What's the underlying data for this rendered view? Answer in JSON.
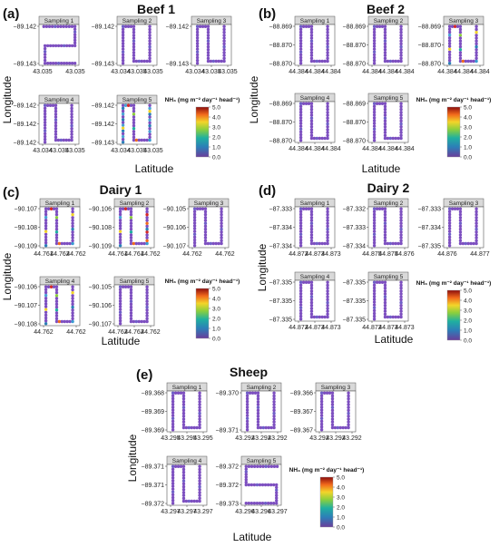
{
  "figure": {
    "colorbar_title": "NH₃ (mg m⁻² day⁻¹ head⁻¹)",
    "colorbar_ticks": [
      "5.0",
      "4.0",
      "3.0",
      "2.0",
      "1.0",
      "0.0"
    ],
    "xlabel": "Latitude",
    "ylabel": "Longitude"
  },
  "chart_data": [
    {
      "type": "scatter",
      "panel": "(a)",
      "title": "Beef 1",
      "xlabel": "Latitude",
      "ylabel": "Longitude",
      "legend": "colorbar NH3 0.0-5.0",
      "subplots": [
        {
          "label": "Sampling 1",
          "xticks": [
            "43.035",
            "43.035"
          ],
          "yticks": [
            "−89.142",
            "−89.143"
          ],
          "shape": "loop",
          "values": "mostly 0.0-0.8"
        },
        {
          "label": "Sampling 2",
          "xticks": [
            "43.034",
            "43.035",
            "43.035"
          ],
          "yticks": [
            "−89.142",
            "−89.143"
          ],
          "shape": "U",
          "values": "mostly 0.0-0.8"
        },
        {
          "label": "Sampling 3",
          "xticks": [
            "43.034",
            "43.035",
            "43.035"
          ],
          "yticks": [
            "−89.142",
            "−89.143"
          ],
          "shape": "U",
          "values": "mostly 0.0-0.8"
        },
        {
          "label": "Sampling 4",
          "xticks": [
            "43.034",
            "43.035",
            "43.035"
          ],
          "yticks": [
            "−89.142",
            "−89.142",
            "−89.142"
          ],
          "shape": "U",
          "values": "mostly 0.0-0.8"
        },
        {
          "label": "Sampling 5",
          "xticks": [
            "43.034",
            "43.035",
            "43.035"
          ],
          "yticks": [
            "−89.142",
            "−89.142",
            "−89.143"
          ],
          "shape": "U",
          "values": "0.0-2.0, higher on sides"
        }
      ]
    },
    {
      "type": "scatter",
      "panel": "(b)",
      "title": "Beef 2",
      "xlabel": "Latitude",
      "ylabel": "Longitude",
      "legend": "colorbar NH3 0.0-5.0",
      "subplots": [
        {
          "label": "Sampling 1",
          "xticks": [
            "44.384",
            "44.384",
            "44.384"
          ],
          "yticks": [
            "−88.869",
            "−88.870",
            "−88.870"
          ],
          "shape": "U",
          "values": "mostly 0.0-0.8"
        },
        {
          "label": "Sampling 2",
          "xticks": [
            "44.384",
            "44.384",
            "44.384"
          ],
          "yticks": [
            "−88.869",
            "−88.870",
            "−88.870"
          ],
          "shape": "U",
          "values": "mostly 0.0-0.8"
        },
        {
          "label": "Sampling 3",
          "xticks": [
            "44.384",
            "44.384",
            "44.384"
          ],
          "yticks": [
            "−88.869",
            "−88.870",
            "−88.870"
          ],
          "shape": "U",
          "values": "0.0-1.5"
        },
        {
          "label": "Sampling 4",
          "xticks": [
            "44.384",
            "44.384",
            "44.384"
          ],
          "yticks": [
            "−88.869",
            "−88.870",
            "−88.870"
          ],
          "shape": "U",
          "values": "mostly 0.0-0.8"
        },
        {
          "label": "Sampling 5",
          "xticks": [
            "44.384",
            "44.384",
            "44.384"
          ],
          "yticks": [
            "−88.869",
            "−88.870",
            "−88.870"
          ],
          "shape": "U",
          "values": "mostly 0.0-0.8"
        }
      ]
    },
    {
      "type": "scatter",
      "panel": "(c)",
      "title": "Dairy 1",
      "xlabel": "Latitude",
      "ylabel": "Longitude",
      "legend": "colorbar NH3 0.0-5.0",
      "subplots": [
        {
          "label": "Sampling 1",
          "xticks": [
            "44.761",
            "44.762",
            "44.762"
          ],
          "yticks": [
            "−90.107",
            "−90.108",
            "−90.109"
          ],
          "shape": "U",
          "values": "0.0-2.0"
        },
        {
          "label": "Sampling 2",
          "xticks": [
            "44.761",
            "44.761",
            "44.762"
          ],
          "yticks": [
            "−90.106",
            "−90.108",
            "−90.109"
          ],
          "shape": "U",
          "values": "0.0-5.0, high at right"
        },
        {
          "label": "Sampling 3",
          "xticks": [
            "44.762",
            "44.762"
          ],
          "yticks": [
            "−90.105",
            "−90.106",
            "−90.107"
          ],
          "shape": "U",
          "values": "mostly 0.0-1.0"
        },
        {
          "label": "Sampling 4",
          "xticks": [
            "44.762",
            "44.762"
          ],
          "yticks": [
            "−90.106",
            "−90.107",
            "−90.108"
          ],
          "shape": "U",
          "values": "0.0-4.0"
        },
        {
          "label": "Sampling 5",
          "xticks": [
            "44.762",
            "44.762",
            "44.762"
          ],
          "yticks": [
            "−90.105",
            "−90.106",
            "−90.107"
          ],
          "shape": "U",
          "values": "mostly 0.0-0.8"
        }
      ]
    },
    {
      "type": "scatter",
      "panel": "(d)",
      "title": "Dairy 2",
      "xlabel": "Latitude",
      "ylabel": "Longitude",
      "legend": "colorbar NH3 0.0-5.0",
      "subplots": [
        {
          "label": "Sampling 1",
          "xticks": [
            "44.872",
            "44.873",
            "44.873"
          ],
          "yticks": [
            "−87.333",
            "−87.334",
            "−87.334"
          ],
          "shape": "U",
          "values": "mostly 0.0-0.8"
        },
        {
          "label": "Sampling 2",
          "xticks": [
            "44.875",
            "44.875",
            "44.876"
          ],
          "yticks": [
            "−87.332",
            "−87.333",
            "−87.334"
          ],
          "shape": "U",
          "values": "mostly 0.0-0.8"
        },
        {
          "label": "Sampling 3",
          "xticks": [
            "44.876",
            "44.877"
          ],
          "yticks": [
            "−87.333",
            "−87.334",
            "−87.335"
          ],
          "shape": "U",
          "values": "mostly 0.0-0.8"
        },
        {
          "label": "Sampling 4",
          "xticks": [
            "44.872",
            "44.873",
            "44.873"
          ],
          "yticks": [
            "−87.335",
            "−87.335",
            "−87.335"
          ],
          "shape": "U",
          "values": "mostly 0.0-0.8"
        },
        {
          "label": "Sampling 5",
          "xticks": [
            "44.872",
            "44.873",
            "44.873"
          ],
          "yticks": [
            "−87.335",
            "−87.335",
            "−87.335"
          ],
          "shape": "U",
          "values": "mostly 0.0-0.8"
        }
      ]
    },
    {
      "type": "scatter",
      "panel": "(e)",
      "title": "Sheep",
      "xlabel": "Latitude",
      "ylabel": "Longitude",
      "legend": "colorbar NH3 0.0-5.0",
      "subplots": [
        {
          "label": "Sampling 1",
          "xticks": [
            "43.295",
            "43.295",
            "43.295"
          ],
          "yticks": [
            "−89.368",
            "−89.369",
            "−89.369"
          ],
          "shape": "U",
          "values": "mostly 0.0-0.8"
        },
        {
          "label": "Sampling 2",
          "xticks": [
            "43.292",
            "43.292",
            "43.292"
          ],
          "yticks": [
            "−89.370",
            "−89.371"
          ],
          "shape": "U",
          "values": "mostly 0.0-0.8"
        },
        {
          "label": "Sampling 3",
          "xticks": [
            "43.292",
            "43.292",
            "43.292"
          ],
          "yticks": [
            "−89.366",
            "−89.367",
            "−89.367"
          ],
          "shape": "U",
          "values": "mostly 0.0-0.8"
        },
        {
          "label": "Sampling 4",
          "xticks": [
            "43.297",
            "43.297",
            "43.297"
          ],
          "yticks": [
            "−89.371",
            "−89.371",
            "−89.372"
          ],
          "shape": "U",
          "values": "mostly 0.0-0.8"
        },
        {
          "label": "Sampling 5",
          "xticks": [
            "43.296",
            "43.296",
            "43.297"
          ],
          "yticks": [
            "−89.372",
            "−89.372",
            "−89.373"
          ],
          "shape": "S",
          "values": "mostly 0.0-0.8"
        }
      ]
    }
  ]
}
